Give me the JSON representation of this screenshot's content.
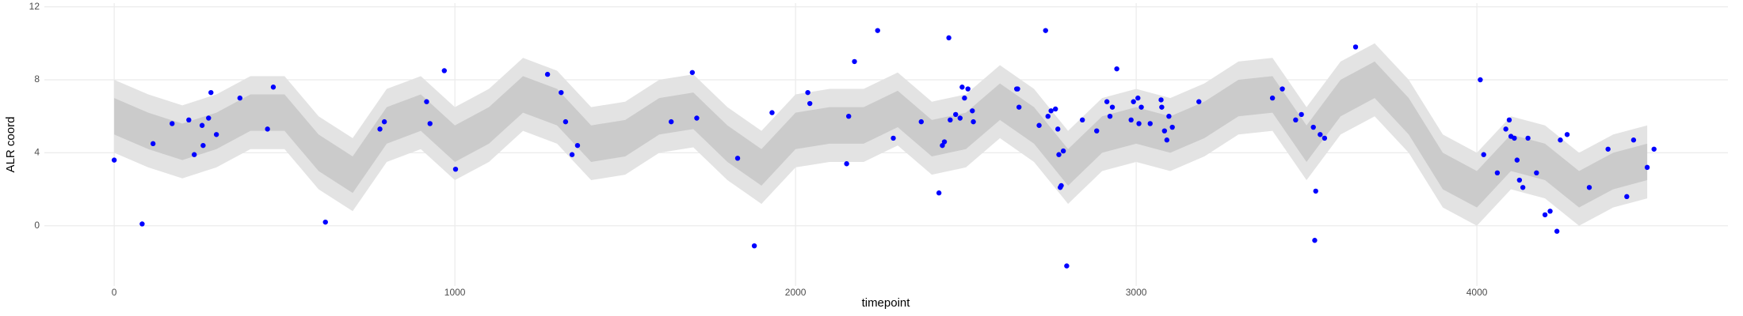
{
  "chart_data": {
    "type": "scatter",
    "xlabel": "timepoint",
    "ylabel": "ALR coord",
    "xlim": [
      -205,
      4737
    ],
    "ylim": [
      -3.3,
      12.2
    ],
    "xticks": [
      0,
      1000,
      2000,
      3000,
      4000
    ],
    "yticks": [
      0,
      4,
      8,
      12
    ],
    "grid": true,
    "band_x": [
      0,
      100,
      200,
      300,
      400,
      500,
      600,
      700,
      800,
      900,
      1000,
      1100,
      1200,
      1300,
      1400,
      1500,
      1600,
      1700,
      1800,
      1900,
      2000,
      2100,
      2200,
      2300,
      2400,
      2500,
      2600,
      2700,
      2800,
      2900,
      3000,
      3100,
      3200,
      3300,
      3400,
      3500,
      3600,
      3700,
      3800,
      3900,
      4000,
      4100,
      4200,
      4300,
      4400,
      4500
    ],
    "bands": [
      {
        "color": "#e3e3e3",
        "lower": [
          4.0,
          3.2,
          2.6,
          3.2,
          4.2,
          4.2,
          2.0,
          0.8,
          3.5,
          4.2,
          2.5,
          3.5,
          5.2,
          4.5,
          2.5,
          2.8,
          4.0,
          4.3,
          2.5,
          1.2,
          3.2,
          3.5,
          3.5,
          4.4,
          2.8,
          3.2,
          4.8,
          3.5,
          1.2,
          3.0,
          3.5,
          3.0,
          3.8,
          5.0,
          5.2,
          2.5,
          5.0,
          6.0,
          4.0,
          1.0,
          0.0,
          2.0,
          1.5,
          0.0,
          1.0,
          1.5
        ],
        "upper": [
          8.0,
          7.2,
          6.6,
          7.2,
          8.2,
          8.2,
          6.0,
          4.8,
          7.5,
          8.2,
          6.5,
          7.5,
          9.2,
          8.5,
          6.5,
          6.8,
          8.0,
          8.3,
          6.5,
          5.2,
          7.2,
          7.5,
          7.5,
          8.4,
          6.8,
          7.2,
          8.8,
          7.5,
          5.2,
          7.0,
          7.5,
          7.0,
          7.8,
          9.0,
          9.2,
          6.5,
          9.0,
          10.0,
          8.0,
          5.0,
          4.0,
          6.0,
          5.5,
          4.0,
          5.0,
          5.5
        ]
      },
      {
        "color": "#cbcbcb",
        "lower": [
          5.0,
          4.2,
          3.6,
          4.2,
          5.2,
          5.2,
          3.0,
          1.8,
          4.5,
          5.2,
          3.5,
          4.5,
          6.2,
          5.5,
          3.5,
          3.8,
          5.0,
          5.3,
          3.5,
          2.2,
          4.2,
          4.5,
          4.5,
          5.4,
          3.8,
          4.2,
          5.8,
          4.5,
          2.2,
          4.0,
          4.5,
          4.0,
          4.8,
          6.0,
          6.2,
          3.5,
          6.0,
          7.0,
          5.0,
          2.0,
          1.0,
          3.0,
          2.5,
          1.0,
          2.0,
          2.5
        ],
        "upper": [
          7.0,
          6.2,
          5.6,
          6.2,
          7.2,
          7.2,
          5.0,
          3.8,
          6.5,
          7.2,
          5.5,
          6.5,
          8.2,
          7.5,
          5.5,
          5.8,
          7.0,
          7.3,
          5.5,
          4.2,
          6.2,
          6.5,
          6.5,
          7.4,
          5.8,
          6.2,
          7.8,
          6.5,
          4.2,
          6.0,
          6.5,
          6.0,
          6.8,
          8.0,
          8.2,
          5.5,
          8.0,
          9.0,
          7.0,
          4.0,
          3.0,
          5.0,
          4.5,
          3.0,
          4.0,
          4.5
        ]
      }
    ],
    "points": {
      "color": "#0000ff",
      "x": [
        0,
        82,
        114,
        170,
        219,
        235,
        258,
        261,
        277,
        284,
        300,
        369,
        450,
        467,
        620,
        780,
        793,
        917,
        927,
        969,
        1002,
        1272,
        1312,
        1325,
        1344,
        1360,
        1635,
        1697,
        1710,
        1830,
        1879,
        1931,
        2036,
        2042,
        2150,
        2156,
        2173,
        2241,
        2287,
        2369,
        2421,
        2431,
        2437,
        2450,
        2454,
        2470,
        2483,
        2489,
        2496,
        2506,
        2519,
        2522,
        2649,
        2652,
        2656,
        2715,
        2734,
        2741,
        2750,
        2763,
        2770,
        2773,
        2777,
        2780,
        2786,
        2796,
        2842,
        2884,
        2914,
        2923,
        2930,
        2943,
        2985,
        2992,
        3005,
        3008,
        3015,
        3041,
        3073,
        3075,
        3083,
        3090,
        3096,
        3106,
        3184,
        3400,
        3429,
        3468,
        3485,
        3520,
        3524,
        3527,
        3540,
        3553,
        3644,
        4010,
        4020,
        4060,
        4085,
        4095,
        4100,
        4110,
        4118,
        4125,
        4135,
        4150,
        4175,
        4200,
        4215,
        4235,
        4245,
        4265,
        4330,
        4385,
        4440,
        4460,
        4500,
        4520
      ],
      "values": [
        3.6,
        0.1,
        4.5,
        5.6,
        5.8,
        3.9,
        5.5,
        4.4,
        5.9,
        7.3,
        5.0,
        7.0,
        5.3,
        7.6,
        0.2,
        5.3,
        5.7,
        6.8,
        5.6,
        8.5,
        3.1,
        8.3,
        7.3,
        5.7,
        3.9,
        4.4,
        5.7,
        8.4,
        5.9,
        3.7,
        -1.1,
        6.2,
        7.3,
        6.7,
        3.4,
        6.0,
        9.0,
        10.7,
        4.8,
        5.7,
        1.8,
        4.4,
        4.6,
        10.3,
        5.8,
        6.1,
        5.9,
        7.6,
        7.0,
        7.5,
        6.3,
        5.7,
        7.5,
        7.5,
        6.5,
        5.5,
        10.7,
        6.0,
        6.3,
        6.4,
        5.3,
        3.9,
        2.1,
        2.2,
        4.1,
        -2.2,
        5.8,
        5.2,
        6.8,
        6.0,
        6.5,
        8.6,
        5.8,
        6.8,
        7.0,
        5.6,
        6.5,
        5.6,
        6.9,
        6.5,
        5.2,
        4.7,
        6.0,
        5.4,
        6.8,
        7.0,
        7.5,
        5.8,
        6.1,
        5.4,
        -0.8,
        1.9,
        5.0,
        4.8,
        9.8,
        8.0,
        3.9,
        2.9,
        5.3,
        5.8,
        4.9,
        4.8,
        3.6,
        2.5,
        2.1,
        4.8,
        2.9,
        0.6,
        0.8,
        -0.3,
        4.7,
        5.0,
        2.1,
        4.2,
        1.6,
        4.7,
        3.2,
        4.2
      ]
    }
  }
}
